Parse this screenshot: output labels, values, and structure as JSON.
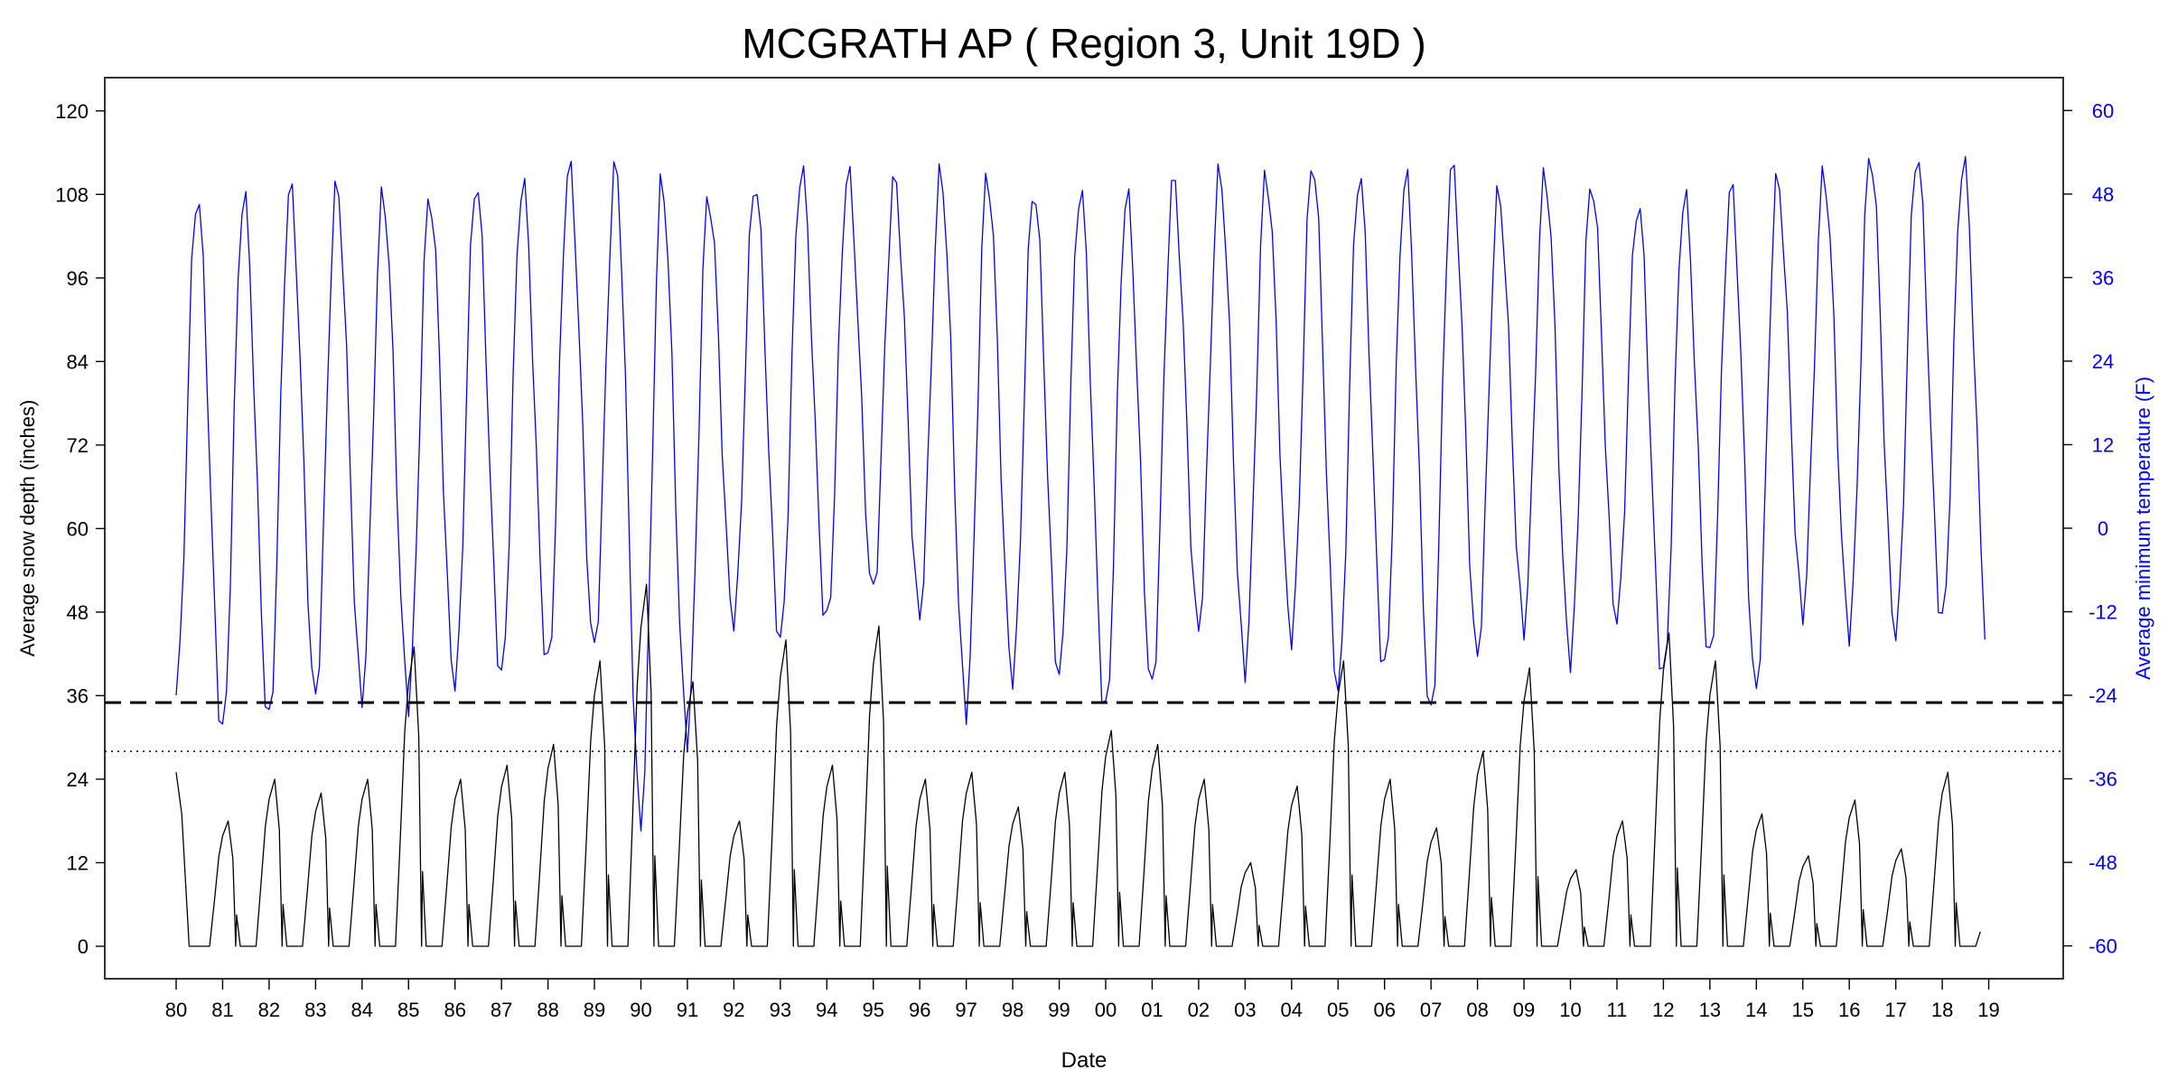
{
  "chart_data": {
    "type": "line",
    "title": "MCGRATH AP ( Region 3, Unit 19D )",
    "xlabel": "Date",
    "ylabel_left": "Average snow depth (inches)",
    "ylabel_right": "Average minimum temperature (F)",
    "x_ticks": [
      "80",
      "81",
      "82",
      "83",
      "84",
      "85",
      "86",
      "87",
      "88",
      "89",
      "90",
      "91",
      "92",
      "93",
      "94",
      "95",
      "96",
      "97",
      "98",
      "99",
      "00",
      "01",
      "02",
      "03",
      "04",
      "05",
      "06",
      "07",
      "08",
      "09",
      "10",
      "11",
      "12",
      "13",
      "14",
      "15",
      "16",
      "17",
      "18",
      "19"
    ],
    "x_range_years": [
      1980,
      2019
    ],
    "left_axis": {
      "ylim": [
        -4,
        125
      ],
      "ticks": [
        0,
        12,
        24,
        36,
        48,
        60,
        72,
        84,
        96,
        108,
        120
      ]
    },
    "right_axis": {
      "ylim": [
        -68,
        65
      ],
      "ticks": [
        -60,
        -48,
        -36,
        -24,
        -12,
        0,
        12,
        24,
        36,
        48,
        60
      ]
    },
    "reference_lines": [
      {
        "style": "dashed",
        "axis": "left",
        "value": 35
      },
      {
        "style": "dotted",
        "axis": "left",
        "value": 28
      }
    ],
    "series": [
      {
        "axis": "right",
        "color": "#0000ff",
        "note_summary": "monthly average minimum temperature",
        "peak_values": [
          48,
          48,
          49,
          49,
          48,
          48,
          50,
          50,
          52,
          52,
          50,
          48,
          50,
          52,
          51,
          50,
          51,
          51,
          49,
          49,
          48,
          50,
          51,
          51,
          53,
          51,
          51,
          52,
          48,
          51,
          50,
          47,
          48,
          49,
          50,
          51,
          54,
          54,
          53
        ],
        "trough_values": [
          -30,
          -28,
          -24,
          -24,
          -25,
          -23,
          -22,
          -20,
          -17,
          -42,
          -30,
          -14,
          -17,
          -14,
          -9,
          -12,
          -26,
          -22,
          -22,
          -27,
          -23,
          -14,
          -20,
          -16,
          -24,
          -21,
          -27,
          -18,
          -14,
          -19,
          -14,
          -22,
          -19,
          -23,
          -12,
          -15,
          -16,
          -14,
          -18
        ]
      },
      {
        "axis": "left",
        "color": "#000000",
        "note_summary": "monthly average snow depth",
        "start_value": 25,
        "peak_values": [
          18,
          24,
          22,
          24,
          43,
          24,
          26,
          29,
          41,
          52,
          38,
          18,
          44,
          26,
          46,
          24,
          25,
          20,
          25,
          31,
          29,
          24,
          12,
          23,
          41,
          24,
          17,
          28,
          40,
          11,
          18,
          45,
          41,
          19,
          13,
          21,
          14,
          25,
          6
        ]
      }
    ]
  }
}
